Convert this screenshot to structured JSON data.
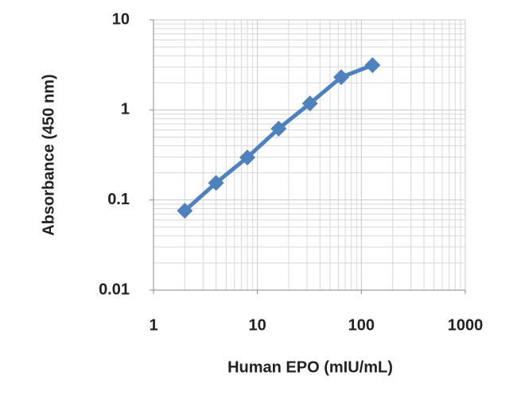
{
  "chart_data": {
    "type": "line",
    "x_label": "Human EPO (mIU/mL)",
    "y_label": "Absorbance  (450 nm)",
    "x": [
      2,
      4,
      8,
      16,
      32,
      64,
      128
    ],
    "series": [
      {
        "name": "Absorbance",
        "color": "#4f81bd",
        "values": [
          0.076,
          0.155,
          0.297,
          0.62,
          1.18,
          2.31,
          3.14
        ]
      }
    ],
    "xlim": [
      1,
      1000
    ],
    "ylim": [
      0.01,
      10
    ],
    "xticks": [
      1,
      10,
      100,
      1000
    ],
    "yticks": [
      0.01,
      0.1,
      1,
      10
    ],
    "xscale": "log",
    "yscale": "log",
    "grid": true,
    "marker": "diamond"
  }
}
